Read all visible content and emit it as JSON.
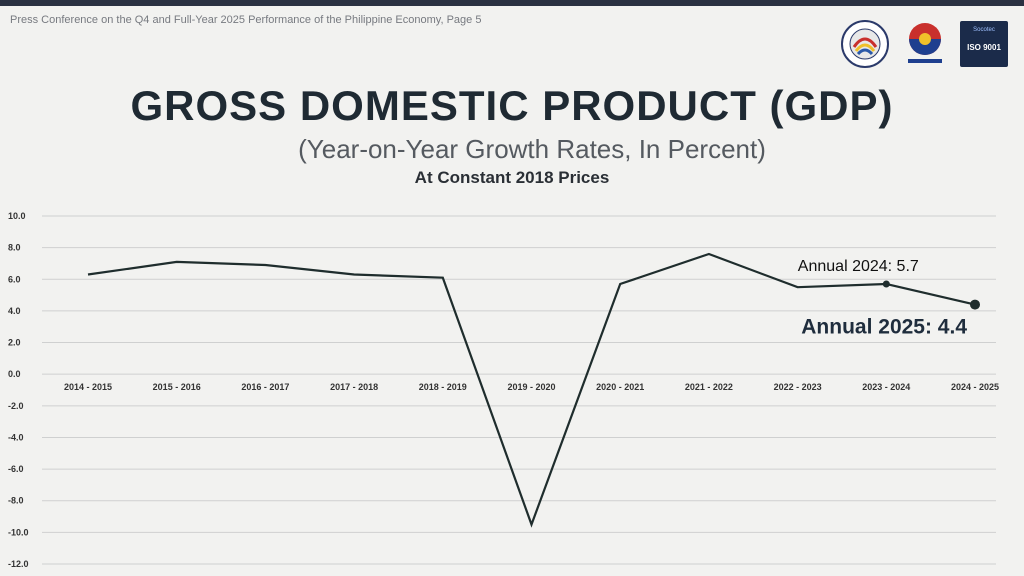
{
  "header": {
    "caption": "Press Conference on the Q4 and Full-Year 2025 Performance of the Philippine Economy, Page 5",
    "logos": [
      {
        "icon": "psa-seal-icon"
      },
      {
        "icon": "bagong-pilipinas-logo-icon"
      },
      {
        "icon": "iso-9001-badge-icon",
        "top_text": "Socotec",
        "main_text": "ISO 9001"
      }
    ]
  },
  "title": "GROSS DOMESTIC PRODUCT (GDP)",
  "subtitle": "(Year-on-Year Growth Rates, In Percent)",
  "subtitle2": "At Constant 2018 Prices",
  "chart_data": {
    "type": "line",
    "categories": [
      "2014 - 2015",
      "2015 - 2016",
      "2016 - 2017",
      "2017 - 2018",
      "2018 - 2019",
      "2019 - 2020",
      "2020 - 2021",
      "2021 - 2022",
      "2022 - 2023",
      "2023 - 2024",
      "2024 - 2025"
    ],
    "series": [
      {
        "values": [
          6.3,
          7.1,
          6.9,
          6.3,
          6.1,
          -9.5,
          5.7,
          7.6,
          5.5,
          5.7,
          4.4
        ],
        "color": "#1f2d2d"
      }
    ],
    "y_ticks": [
      "10.0",
      "8.0",
      "6.0",
      "4.0",
      "2.0",
      "0.0",
      "-2.0",
      "-4.0",
      "-6.0",
      "-8.0",
      "-10.0",
      "-12.0"
    ],
    "ylim": [
      -12,
      10
    ],
    "grid": true,
    "annotations": [
      {
        "text": "Annual 2024: 5.7",
        "category": "2023 - 2024",
        "value": 5.7
      },
      {
        "text": "Annual 2025: 4.4",
        "category": "2024 - 2025",
        "value": 4.4
      }
    ]
  }
}
